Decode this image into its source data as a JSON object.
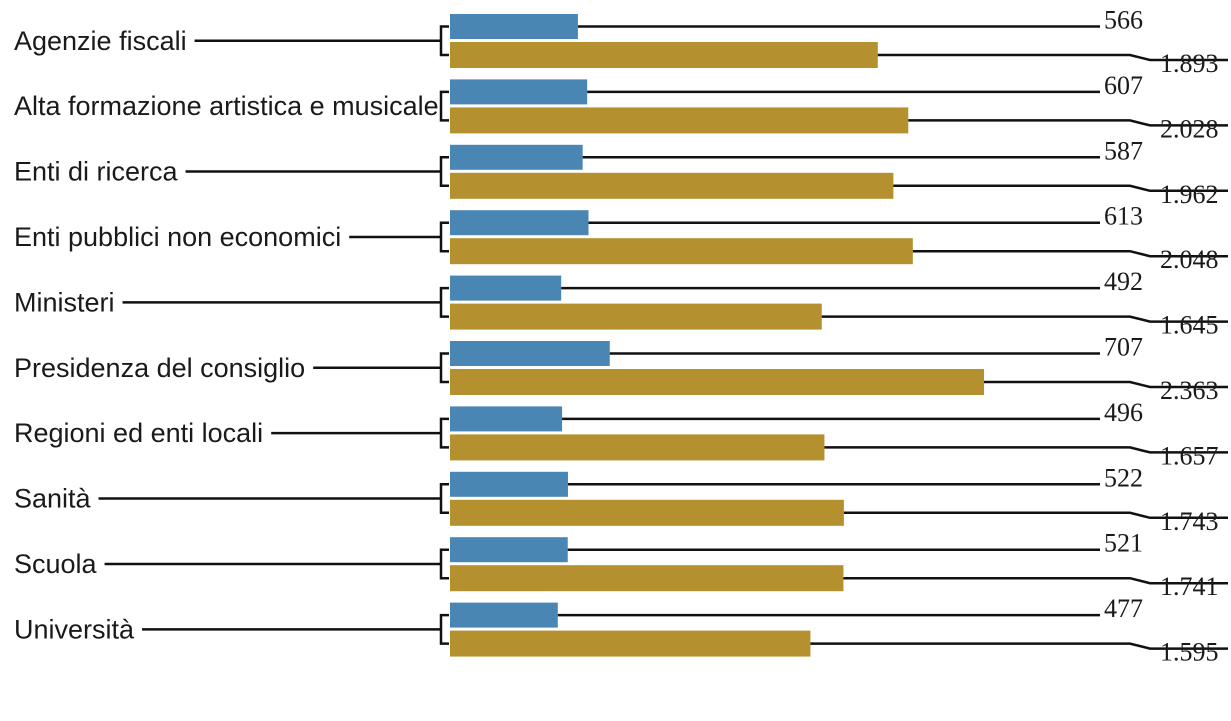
{
  "chart_data": {
    "type": "bar",
    "orientation": "horizontal",
    "categories": [
      "Agenzie fiscali",
      "Alta formazione artistica e musicale",
      "Enti di ricerca",
      "Enti pubblici non economici",
      "Ministeri",
      "Presidenza del consiglio",
      "Regioni ed enti locali",
      "Sanità",
      "Scuola",
      "Università"
    ],
    "series": [
      {
        "color": "#4a86b4",
        "values": [
          566,
          607,
          587,
          613,
          492,
          707,
          496,
          522,
          521,
          477
        ],
        "labels": [
          "566",
          "607",
          "587",
          "613",
          "492",
          "707",
          "496",
          "522",
          "521",
          "477"
        ]
      },
      {
        "color": "#b4912e",
        "values": [
          1893,
          2028,
          1962,
          2048,
          1645,
          2363,
          1657,
          1743,
          1741,
          1595
        ],
        "labels": [
          "1.893",
          "2.028",
          "1.962",
          "2.048",
          "1.645",
          "2.363",
          "1.657",
          "1.743",
          "1.741",
          "1.595"
        ]
      }
    ],
    "xlim": [
      0,
      2363
    ],
    "grid": false,
    "legend": "none"
  }
}
